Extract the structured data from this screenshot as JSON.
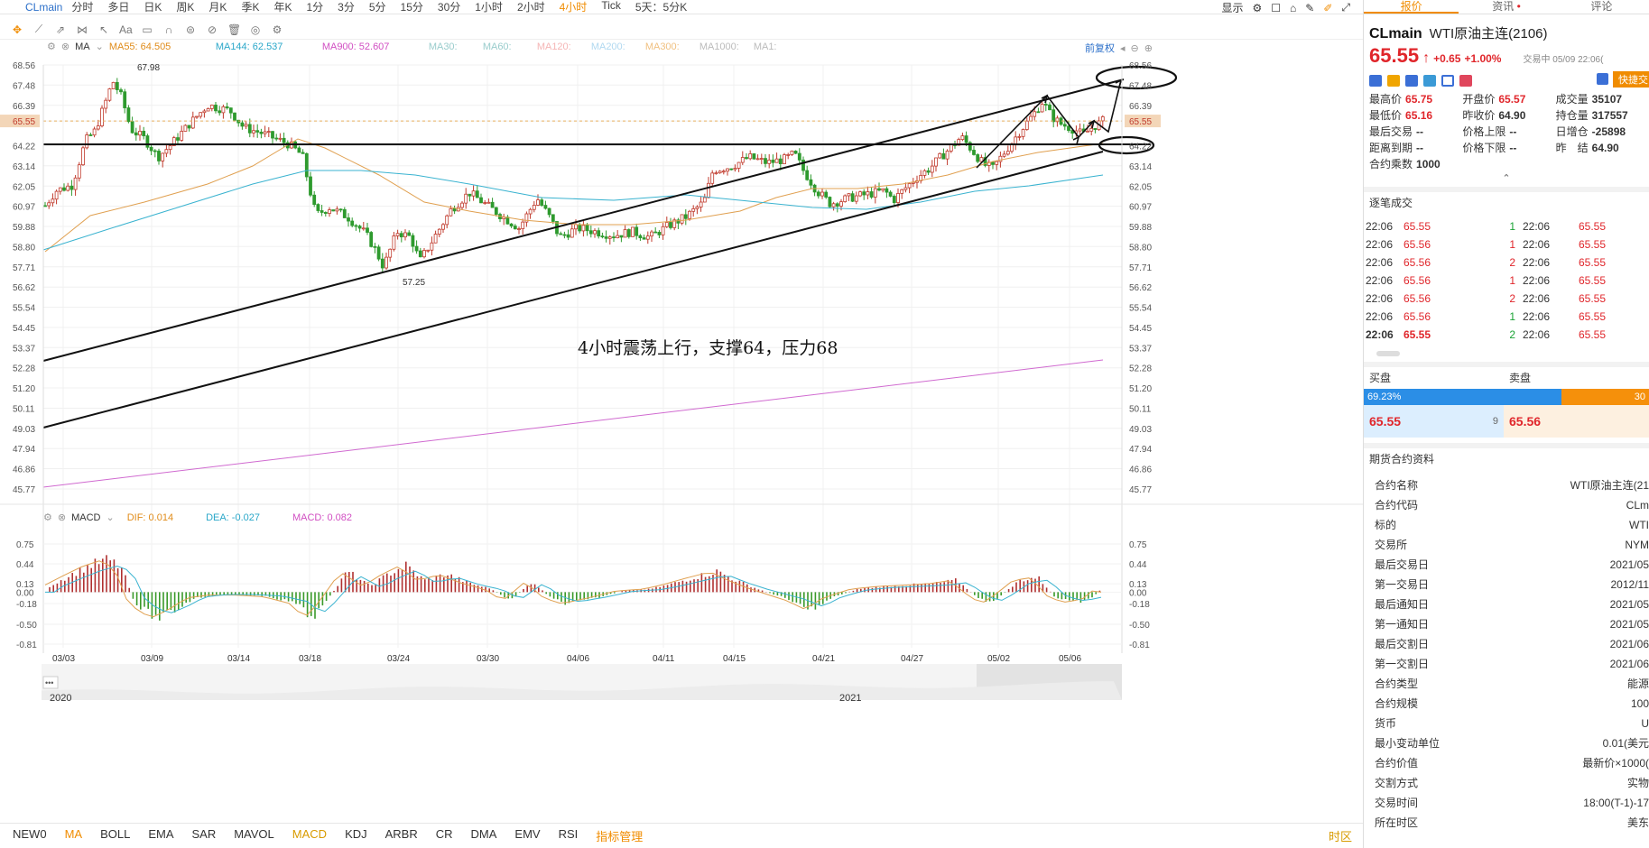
{
  "toolbar": {
    "symbol": "CLmain",
    "periods": [
      "分时",
      "多日",
      "日K",
      "周K",
      "月K",
      "季K",
      "年K",
      "1分",
      "3分",
      "5分",
      "15分",
      "30分",
      "1小时",
      "2小时",
      "4小时",
      "Tick",
      "5天：5分K"
    ],
    "active_period": "4小时",
    "display_label": "显示"
  },
  "main_chart": {
    "ma_label": "MA",
    "ma_values": [
      {
        "text": "MA55: 64.505",
        "color": "#e08c1a"
      },
      {
        "text": "MA144: 62.537",
        "color": "#2aa7c9"
      },
      {
        "text": "MA900: 52.607",
        "color": "#d14fc2"
      },
      {
        "text": "MA30:",
        "color": "#9cc"
      },
      {
        "text": "MA60:",
        "color": "#9cc"
      },
      {
        "text": "MA120:",
        "color": "#f5b5b5"
      },
      {
        "text": "MA200:",
        "color": "#b0d8f0"
      },
      {
        "text": "MA300:",
        "color": "#f0c080"
      },
      {
        "text": "MA1000:",
        "color": "#bbb"
      },
      {
        "text": "MA1:",
        "color": "#bbb"
      }
    ],
    "adjust_label": "前复权",
    "price_ticks": [
      "68.56",
      "67.48",
      "66.39",
      "65.55",
      "64.22",
      "63.14",
      "62.05",
      "60.97",
      "59.88",
      "58.80",
      "57.71",
      "56.62",
      "55.54",
      "54.45",
      "53.37",
      "52.28",
      "51.20",
      "50.11",
      "49.03",
      "47.94",
      "46.86",
      "45.77"
    ],
    "current_price_tag": "65.55",
    "high_label": "67.98",
    "low_label": "57.25",
    "annotation": "4小时震荡上行，支撑64，压力68"
  },
  "macd": {
    "label": "MACD",
    "dif": "DIF: 0.014",
    "dea": "DEA: -0.027",
    "macd": "MACD: 0.082",
    "ticks": [
      "0.75",
      "0.44",
      "0.13",
      "0.00",
      "-0.18",
      "-0.50",
      "-0.81"
    ]
  },
  "dates": [
    "03/03",
    "03/09",
    "03/14",
    "03/18",
    "03/24",
    "03/30",
    "04/06",
    "04/11",
    "04/15",
    "04/21",
    "04/27",
    "05/02",
    "05/06"
  ],
  "overview": {
    "start_year": "2020",
    "end_year": "2021"
  },
  "indicators": [
    "NEW0",
    "MA",
    "BOLL",
    "EMA",
    "SAR",
    "MAVOL",
    "MACD",
    "KDJ",
    "ARBR",
    "CR",
    "DMA",
    "EMV",
    "RSI",
    "指标管理"
  ],
  "timezone_label": "时区",
  "panel": {
    "tabs": [
      "报价",
      "资讯",
      "评论"
    ],
    "code": "CLmain",
    "name": "WTI原油主连(2106)",
    "price": "65.55",
    "change": "+0.65",
    "change_pct": "+1.00%",
    "status": "交易中 05/09 22:06(",
    "quick_trade": "快捷交",
    "quote_rows": [
      [
        {
          "k": "最高价",
          "v": "65.75",
          "c": "red"
        },
        {
          "k": "开盘价",
          "v": "65.57",
          "c": "red"
        },
        {
          "k": "成交量",
          "v": "35107",
          "c": ""
        }
      ],
      [
        {
          "k": "最低价",
          "v": "65.16",
          "c": "red"
        },
        {
          "k": "昨收价",
          "v": "64.90",
          "c": ""
        },
        {
          "k": "持仓量",
          "v": "317557",
          "c": ""
        }
      ],
      [
        {
          "k": "最后交易",
          "v": "--",
          "c": ""
        },
        {
          "k": "价格上限",
          "v": "--",
          "c": ""
        },
        {
          "k": "日增仓",
          "v": "-25898",
          "c": ""
        }
      ],
      [
        {
          "k": "距离到期",
          "v": "--",
          "c": ""
        },
        {
          "k": "价格下限",
          "v": "--",
          "c": ""
        },
        {
          "k": "昨　结",
          "v": "64.90",
          "c": ""
        }
      ],
      [
        {
          "k": "合约乘数",
          "v": "1000",
          "c": ""
        }
      ]
    ],
    "ticks_title": "逐笔成交",
    "ticks": [
      {
        "t1": "22:06",
        "p1": "65.55",
        "q": "1",
        "qc": "green",
        "t2": "22:06",
        "p2": "65.55"
      },
      {
        "t1": "22:06",
        "p1": "65.56",
        "q": "1",
        "qc": "red",
        "t2": "22:06",
        "p2": "65.55"
      },
      {
        "t1": "22:06",
        "p1": "65.56",
        "q": "2",
        "qc": "red",
        "t2": "22:06",
        "p2": "65.55"
      },
      {
        "t1": "22:06",
        "p1": "65.56",
        "q": "1",
        "qc": "red",
        "t2": "22:06",
        "p2": "65.55"
      },
      {
        "t1": "22:06",
        "p1": "65.56",
        "q": "2",
        "qc": "red",
        "t2": "22:06",
        "p2": "65.55"
      },
      {
        "t1": "22:06",
        "p1": "65.56",
        "q": "1",
        "qc": "green",
        "t2": "22:06",
        "p2": "65.55"
      },
      {
        "t1": "22:06",
        "p1": "65.55",
        "q": "2",
        "qc": "green",
        "t2": "22:06",
        "p2": "65.55"
      }
    ],
    "buy_label": "买盘",
    "sell_label": "卖盘",
    "buy_pct": "69.23%",
    "sell_pct": "30",
    "bid": "65.55",
    "bid_size": "9",
    "ask": "65.56",
    "spec_title": "期货合约资料",
    "specs": [
      [
        "合约名称",
        "WTI原油主连(21"
      ],
      [
        "合约代码",
        "CLm"
      ],
      [
        "标的",
        "WTI"
      ],
      [
        "交易所",
        "NYM"
      ],
      [
        "最后交易日",
        "2021/05"
      ],
      [
        "第一交易日",
        "2012/11"
      ],
      [
        "最后通知日",
        "2021/05"
      ],
      [
        "第一通知日",
        "2021/05"
      ],
      [
        "最后交割日",
        "2021/06"
      ],
      [
        "第一交割日",
        "2021/06"
      ],
      [
        "合约类型",
        "能源"
      ],
      [
        "合约规模",
        "100"
      ],
      [
        "货币",
        "U"
      ],
      [
        "最小变动单位",
        "0.01(美元"
      ],
      [
        "合约价值",
        "最新价×1000("
      ],
      [
        "交割方式",
        "实物"
      ],
      [
        "交易时间",
        "18:00(T-1)-17"
      ],
      [
        "所在时区",
        "美东"
      ]
    ]
  }
}
